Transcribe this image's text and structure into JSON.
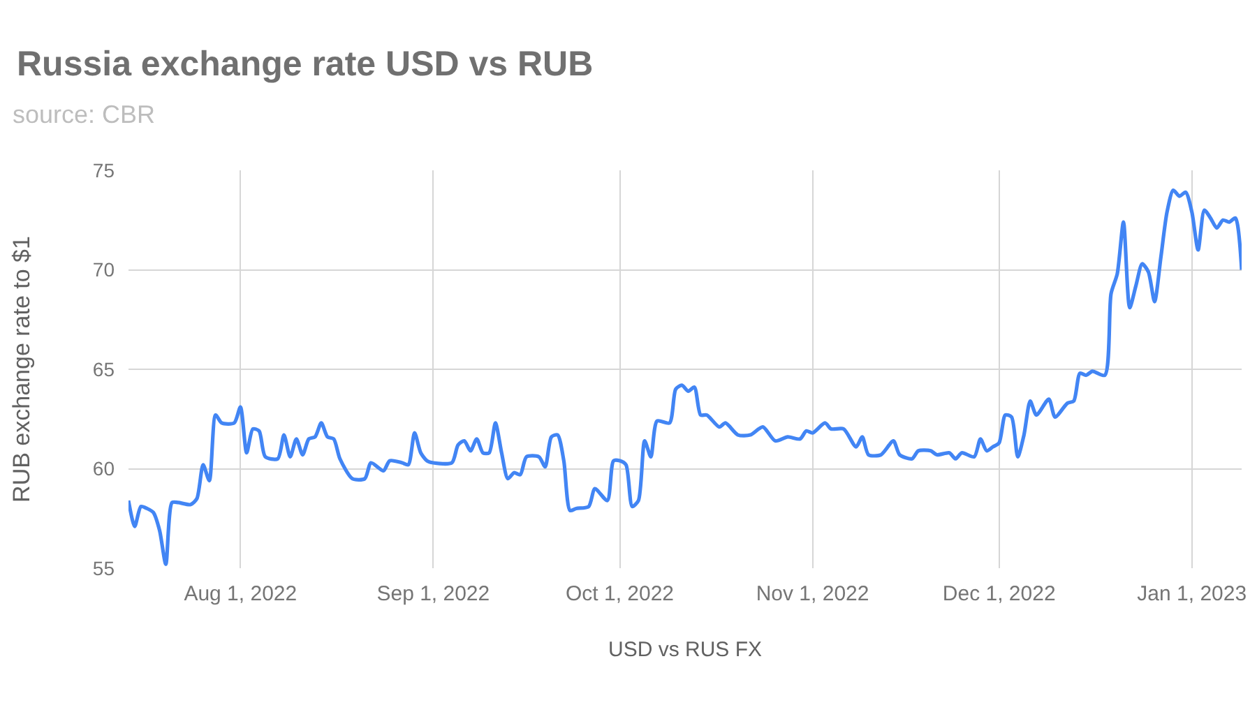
{
  "chart_data": {
    "type": "line",
    "title": "Russia exchange rate USD vs RUB",
    "subtitle": "source: CBR",
    "xlabel": "USD vs RUS FX",
    "ylabel": "RUB exchange rate to $1",
    "x": [
      "2022-07-14",
      "2022-07-15",
      "2022-07-16",
      "2022-07-17",
      "2022-07-18",
      "2022-07-19",
      "2022-07-20",
      "2022-07-21",
      "2022-07-22",
      "2022-07-24",
      "2022-07-25",
      "2022-07-26",
      "2022-07-27",
      "2022-07-28",
      "2022-07-29",
      "2022-07-31",
      "2022-08-01",
      "2022-08-02",
      "2022-08-03",
      "2022-08-04",
      "2022-08-05",
      "2022-08-07",
      "2022-08-08",
      "2022-08-09",
      "2022-08-10",
      "2022-08-11",
      "2022-08-12",
      "2022-08-13",
      "2022-08-14",
      "2022-08-15",
      "2022-08-16",
      "2022-08-17",
      "2022-08-19",
      "2022-08-21",
      "2022-08-22",
      "2022-08-24",
      "2022-08-25",
      "2022-08-27",
      "2022-08-28",
      "2022-08-29",
      "2022-08-30",
      "2022-08-31",
      "2022-09-01",
      "2022-09-04",
      "2022-09-05",
      "2022-09-06",
      "2022-09-07",
      "2022-09-08",
      "2022-09-09",
      "2022-09-10",
      "2022-09-11",
      "2022-09-12",
      "2022-09-13",
      "2022-09-14",
      "2022-09-15",
      "2022-09-16",
      "2022-09-18",
      "2022-09-19",
      "2022-09-20",
      "2022-09-21",
      "2022-09-22",
      "2022-09-23",
      "2022-09-24",
      "2022-09-26",
      "2022-09-27",
      "2022-09-29",
      "2022-09-30",
      "2022-10-01",
      "2022-10-02",
      "2022-10-03",
      "2022-10-04",
      "2022-10-05",
      "2022-10-06",
      "2022-10-07",
      "2022-10-09",
      "2022-10-10",
      "2022-10-11",
      "2022-10-12",
      "2022-10-13",
      "2022-10-14",
      "2022-10-15",
      "2022-10-17",
      "2022-10-18",
      "2022-10-20",
      "2022-10-22",
      "2022-10-24",
      "2022-10-26",
      "2022-10-28",
      "2022-10-30",
      "2022-10-31",
      "2022-11-01",
      "2022-11-03",
      "2022-11-04",
      "2022-11-06",
      "2022-11-08",
      "2022-11-09",
      "2022-11-10",
      "2022-11-12",
      "2022-11-14",
      "2022-11-15",
      "2022-11-17",
      "2022-11-18",
      "2022-11-20",
      "2022-11-21",
      "2022-11-23",
      "2022-11-24",
      "2022-11-25",
      "2022-11-27",
      "2022-11-28",
      "2022-11-29",
      "2022-11-30",
      "2022-12-01",
      "2022-12-02",
      "2022-12-03",
      "2022-12-04",
      "2022-12-05",
      "2022-12-06",
      "2022-12-07",
      "2022-12-09",
      "2022-12-10",
      "2022-12-12",
      "2022-12-13",
      "2022-12-14",
      "2022-12-15",
      "2022-12-16",
      "2022-12-18",
      "2022-12-19",
      "2022-12-20",
      "2022-12-21",
      "2022-12-22",
      "2022-12-23",
      "2022-12-24",
      "2022-12-25",
      "2022-12-26",
      "2022-12-27",
      "2022-12-28",
      "2022-12-29",
      "2022-12-30",
      "2022-12-31",
      "2023-01-01",
      "2023-01-02",
      "2023-01-03",
      "2023-01-04",
      "2023-01-05",
      "2023-01-06",
      "2023-01-07",
      "2023-01-08",
      "2023-01-09"
    ],
    "values": [
      58.4,
      57.1,
      58.1,
      58.0,
      57.8,
      56.9,
      55.2,
      58.3,
      58.3,
      58.2,
      58.5,
      60.2,
      59.4,
      62.7,
      62.3,
      62.3,
      63.1,
      60.8,
      62.0,
      61.9,
      60.6,
      60.5,
      61.7,
      60.6,
      61.5,
      60.7,
      61.5,
      61.6,
      62.3,
      61.6,
      61.5,
      60.5,
      59.5,
      59.5,
      60.3,
      59.9,
      60.4,
      60.3,
      60.2,
      61.8,
      60.8,
      60.4,
      60.3,
      60.3,
      61.2,
      61.4,
      60.9,
      61.5,
      60.8,
      60.8,
      62.3,
      60.8,
      59.5,
      59.8,
      59.7,
      60.6,
      60.6,
      60.1,
      61.6,
      61.7,
      60.4,
      57.9,
      58.0,
      58.1,
      59.0,
      58.4,
      60.4,
      60.4,
      60.2,
      58.1,
      58.4,
      61.4,
      60.6,
      62.4,
      62.3,
      64.0,
      64.2,
      63.9,
      64.1,
      62.7,
      62.7,
      62.1,
      62.3,
      61.7,
      61.7,
      62.1,
      61.4,
      61.6,
      61.5,
      61.9,
      61.8,
      62.3,
      62.0,
      62.0,
      61.1,
      61.6,
      60.7,
      60.7,
      61.4,
      60.7,
      60.5,
      60.9,
      60.9,
      60.7,
      60.8,
      60.5,
      60.8,
      60.6,
      61.5,
      60.9,
      61.1,
      61.3,
      62.7,
      62.6,
      60.6,
      61.7,
      63.4,
      62.7,
      63.5,
      62.6,
      63.3,
      63.4,
      64.8,
      64.7,
      64.9,
      64.7,
      68.8,
      69.8,
      72.4,
      68.1,
      69.2,
      70.3,
      69.9,
      68.4,
      70.6,
      72.9,
      74.0,
      73.7,
      73.9,
      72.9,
      71.0,
      73.0,
      72.6,
      72.1,
      72.5,
      72.4,
      72.6,
      70.0
    ],
    "color": "#4285f4",
    "xlim": [
      "2022-07-14",
      "2023-01-09"
    ],
    "xticks": [
      {
        "value": "2022-08-01",
        "label": "Aug 1, 2022"
      },
      {
        "value": "2022-09-01",
        "label": "Sep 1, 2022"
      },
      {
        "value": "2022-10-01",
        "label": "Oct 1, 2022"
      },
      {
        "value": "2022-11-01",
        "label": "Nov 1, 2022"
      },
      {
        "value": "2022-12-01",
        "label": "Dec 1, 2022"
      },
      {
        "value": "2023-01-01",
        "label": "Jan 1, 2023"
      }
    ],
    "ylim": [
      55,
      75
    ],
    "yticks": [
      55,
      60,
      65,
      70,
      75
    ],
    "grid": true
  }
}
